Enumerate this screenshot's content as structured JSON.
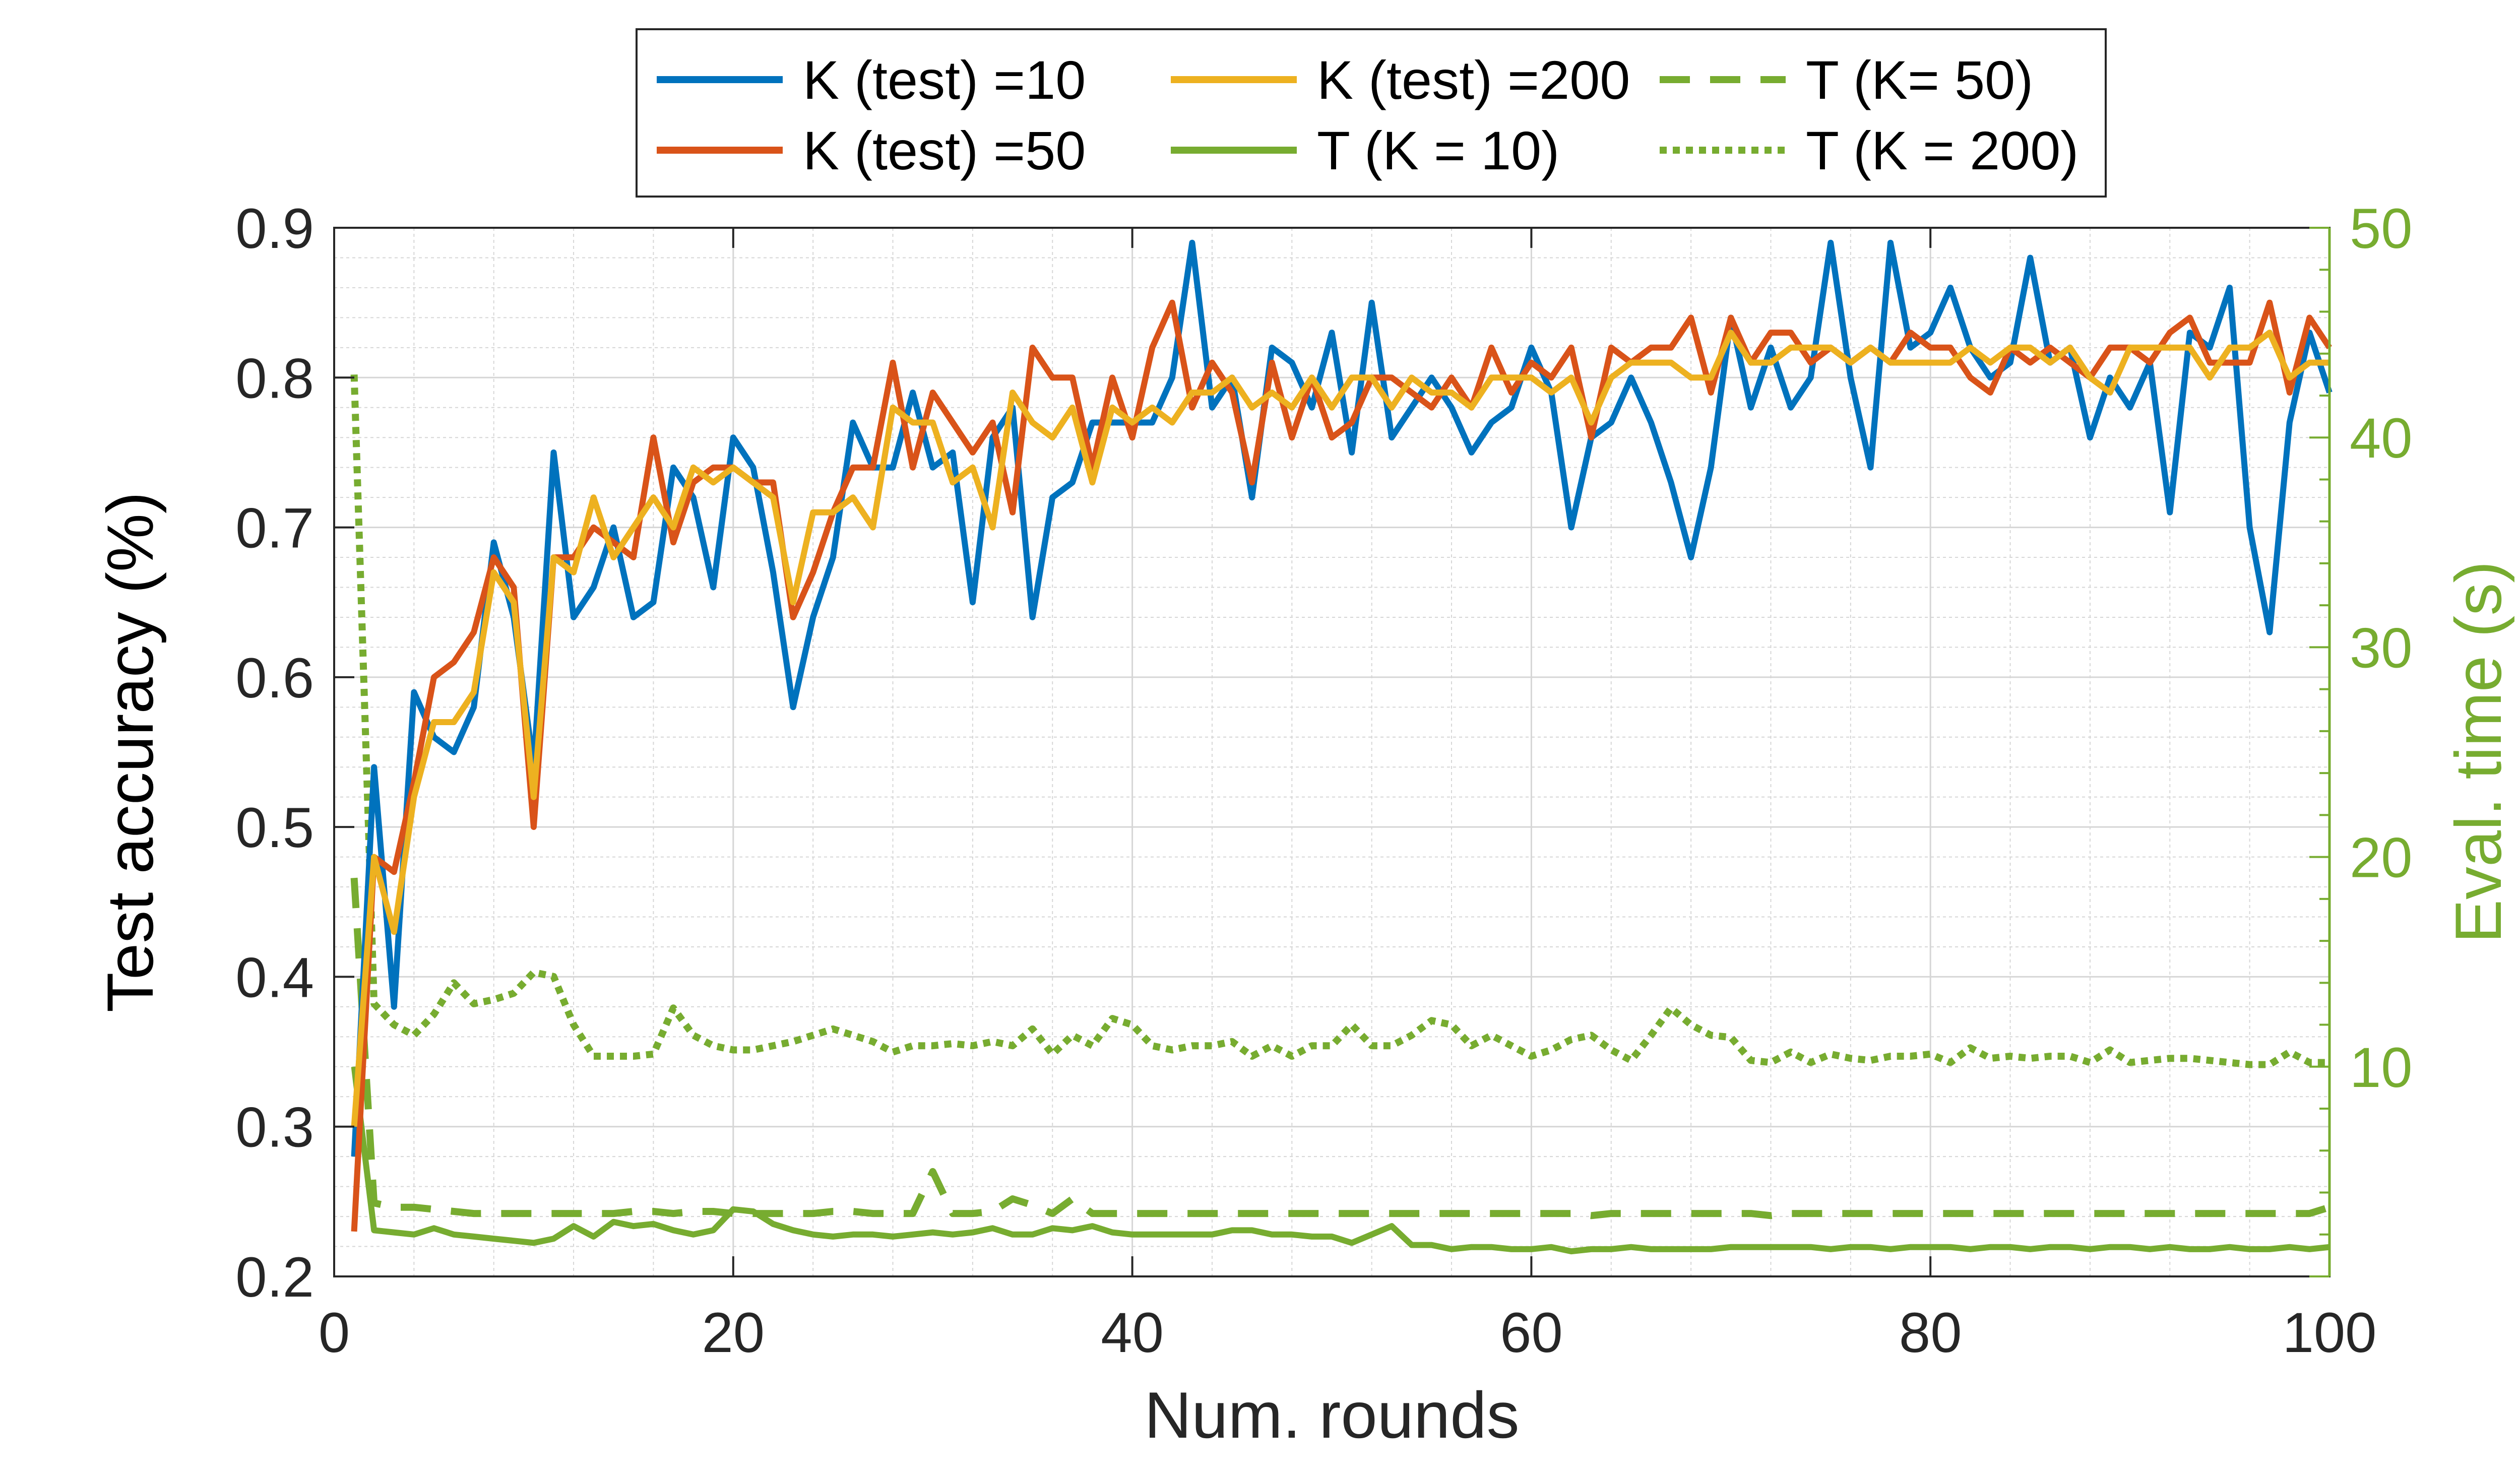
{
  "chart_data": {
    "type": "line",
    "xlabel": "Num. rounds",
    "ylabel_left": "Test accuracy (%)",
    "ylabel_right": "Eval. time (s)",
    "xlim": [
      0,
      100
    ],
    "ylim_left": [
      0.2,
      0.9
    ],
    "ylim_right": [
      0,
      50
    ],
    "xticks": [
      0,
      20,
      40,
      60,
      80,
      100
    ],
    "yticks_left": [
      0.2,
      0.3,
      0.4,
      0.5,
      0.6,
      0.7,
      0.8,
      0.9
    ],
    "yticks_right": [
      10,
      20,
      30,
      40,
      50
    ],
    "grid": true,
    "legend_position": "top",
    "colors": {
      "blue": "#0072BD",
      "orange": "#D95319",
      "yellow": "#EDB120",
      "green": "#77AC30",
      "axis": "#262626",
      "grid": "#d6d6d6"
    },
    "series": [
      {
        "name": "K (test) =10",
        "axis": "left",
        "color": "#0072BD",
        "dash": "solid",
        "x": [
          1,
          2,
          3,
          4,
          5,
          6,
          7,
          8,
          9,
          10,
          11,
          12,
          13,
          14,
          15,
          16,
          17,
          18,
          19,
          20,
          21,
          22,
          23,
          24,
          25,
          26,
          27,
          28,
          29,
          30,
          31,
          32,
          33,
          34,
          35,
          36,
          37,
          38,
          39,
          40,
          41,
          42,
          43,
          44,
          45,
          46,
          47,
          48,
          49,
          50,
          51,
          52,
          53,
          54,
          55,
          56,
          57,
          58,
          59,
          60,
          61,
          62,
          63,
          64,
          65,
          66,
          67,
          68,
          69,
          70,
          71,
          72,
          73,
          74,
          75,
          76,
          77,
          78,
          79,
          80,
          81,
          82,
          83,
          84,
          85,
          86,
          87,
          88,
          89,
          90,
          91,
          92,
          93,
          94,
          95,
          96,
          97,
          98,
          99,
          100
        ],
        "values": [
          0.28,
          0.54,
          0.38,
          0.59,
          0.56,
          0.55,
          0.58,
          0.69,
          0.64,
          0.54,
          0.75,
          0.64,
          0.66,
          0.7,
          0.64,
          0.65,
          0.74,
          0.72,
          0.66,
          0.76,
          0.74,
          0.67,
          0.58,
          0.64,
          0.68,
          0.77,
          0.74,
          0.74,
          0.79,
          0.74,
          0.75,
          0.65,
          0.76,
          0.78,
          0.64,
          0.72,
          0.73,
          0.77,
          0.77,
          0.77,
          0.77,
          0.8,
          0.89,
          0.78,
          0.8,
          0.72,
          0.82,
          0.81,
          0.78,
          0.83,
          0.75,
          0.85,
          0.76,
          0.78,
          0.8,
          0.78,
          0.75,
          0.77,
          0.78,
          0.82,
          0.79,
          0.7,
          0.76,
          0.77,
          0.8,
          0.77,
          0.73,
          0.68,
          0.74,
          0.84,
          0.78,
          0.82,
          0.78,
          0.8,
          0.89,
          0.8,
          0.74,
          0.89,
          0.82,
          0.83,
          0.86,
          0.82,
          0.8,
          0.81,
          0.88,
          0.81,
          0.82,
          0.76,
          0.8,
          0.78,
          0.81,
          0.71,
          0.83,
          0.82,
          0.86,
          0.7,
          0.63,
          0.77,
          0.83,
          0.79
        ]
      },
      {
        "name": "K (test) =50",
        "axis": "left",
        "color": "#D95319",
        "dash": "solid",
        "x": [
          1,
          2,
          3,
          4,
          5,
          6,
          7,
          8,
          9,
          10,
          11,
          12,
          13,
          14,
          15,
          16,
          17,
          18,
          19,
          20,
          21,
          22,
          23,
          24,
          25,
          26,
          27,
          28,
          29,
          30,
          31,
          32,
          33,
          34,
          35,
          36,
          37,
          38,
          39,
          40,
          41,
          42,
          43,
          44,
          45,
          46,
          47,
          48,
          49,
          50,
          51,
          52,
          53,
          54,
          55,
          56,
          57,
          58,
          59,
          60,
          61,
          62,
          63,
          64,
          65,
          66,
          67,
          68,
          69,
          70,
          71,
          72,
          73,
          74,
          75,
          76,
          77,
          78,
          79,
          80,
          81,
          82,
          83,
          84,
          85,
          86,
          87,
          88,
          89,
          90,
          91,
          92,
          93,
          94,
          95,
          96,
          97,
          98,
          99,
          100
        ],
        "values": [
          0.23,
          0.48,
          0.47,
          0.53,
          0.6,
          0.61,
          0.63,
          0.68,
          0.66,
          0.5,
          0.68,
          0.68,
          0.7,
          0.69,
          0.68,
          0.76,
          0.69,
          0.73,
          0.74,
          0.74,
          0.73,
          0.73,
          0.64,
          0.67,
          0.71,
          0.74,
          0.74,
          0.81,
          0.74,
          0.79,
          0.77,
          0.75,
          0.77,
          0.71,
          0.82,
          0.8,
          0.8,
          0.74,
          0.8,
          0.76,
          0.82,
          0.85,
          0.78,
          0.81,
          0.79,
          0.73,
          0.81,
          0.76,
          0.8,
          0.76,
          0.77,
          0.8,
          0.8,
          0.79,
          0.78,
          0.8,
          0.78,
          0.82,
          0.79,
          0.81,
          0.8,
          0.82,
          0.76,
          0.82,
          0.81,
          0.82,
          0.82,
          0.84,
          0.79,
          0.84,
          0.81,
          0.83,
          0.83,
          0.81,
          0.82,
          0.81,
          0.82,
          0.81,
          0.83,
          0.82,
          0.82,
          0.8,
          0.79,
          0.82,
          0.81,
          0.82,
          0.81,
          0.8,
          0.82,
          0.82,
          0.81,
          0.83,
          0.84,
          0.81,
          0.81,
          0.81,
          0.85,
          0.79,
          0.84,
          0.82
        ]
      },
      {
        "name": "K (test) =200",
        "axis": "left",
        "color": "#EDB120",
        "dash": "solid",
        "x": [
          1,
          2,
          3,
          4,
          5,
          6,
          7,
          8,
          9,
          10,
          11,
          12,
          13,
          14,
          15,
          16,
          17,
          18,
          19,
          20,
          21,
          22,
          23,
          24,
          25,
          26,
          27,
          28,
          29,
          30,
          31,
          32,
          33,
          34,
          35,
          36,
          37,
          38,
          39,
          40,
          41,
          42,
          43,
          44,
          45,
          46,
          47,
          48,
          49,
          50,
          51,
          52,
          53,
          54,
          55,
          56,
          57,
          58,
          59,
          60,
          61,
          62,
          63,
          64,
          65,
          66,
          67,
          68,
          69,
          70,
          71,
          72,
          73,
          74,
          75,
          76,
          77,
          78,
          79,
          80,
          81,
          82,
          83,
          84,
          85,
          86,
          87,
          88,
          89,
          90,
          91,
          92,
          93,
          94,
          95,
          96,
          97,
          98,
          99,
          100
        ],
        "values": [
          0.3,
          0.48,
          0.43,
          0.52,
          0.57,
          0.57,
          0.59,
          0.67,
          0.65,
          0.52,
          0.68,
          0.67,
          0.72,
          0.68,
          0.7,
          0.72,
          0.7,
          0.74,
          0.73,
          0.74,
          0.73,
          0.72,
          0.65,
          0.71,
          0.71,
          0.72,
          0.7,
          0.78,
          0.77,
          0.77,
          0.73,
          0.74,
          0.7,
          0.79,
          0.77,
          0.76,
          0.78,
          0.73,
          0.78,
          0.77,
          0.78,
          0.77,
          0.79,
          0.79,
          0.8,
          0.78,
          0.79,
          0.78,
          0.8,
          0.78,
          0.8,
          0.8,
          0.78,
          0.8,
          0.79,
          0.79,
          0.78,
          0.8,
          0.8,
          0.8,
          0.79,
          0.8,
          0.77,
          0.8,
          0.81,
          0.81,
          0.81,
          0.8,
          0.8,
          0.83,
          0.81,
          0.81,
          0.82,
          0.82,
          0.82,
          0.81,
          0.82,
          0.81,
          0.81,
          0.81,
          0.81,
          0.82,
          0.81,
          0.82,
          0.82,
          0.81,
          0.82,
          0.8,
          0.79,
          0.82,
          0.82,
          0.82,
          0.82,
          0.8,
          0.82,
          0.82,
          0.83,
          0.8,
          0.81,
          0.81
        ]
      },
      {
        "name": "T (K = 10)",
        "axis": "right",
        "color": "#77AC30",
        "dash": "solid",
        "x": [
          1,
          2,
          3,
          4,
          5,
          6,
          7,
          8,
          9,
          10,
          11,
          12,
          13,
          14,
          15,
          16,
          17,
          18,
          19,
          20,
          21,
          22,
          23,
          24,
          25,
          26,
          27,
          28,
          29,
          30,
          31,
          32,
          33,
          34,
          35,
          36,
          37,
          38,
          39,
          40,
          41,
          42,
          43,
          44,
          45,
          46,
          47,
          48,
          49,
          50,
          51,
          52,
          53,
          54,
          55,
          56,
          57,
          58,
          59,
          60,
          61,
          62,
          63,
          64,
          65,
          66,
          67,
          68,
          69,
          70,
          71,
          72,
          73,
          74,
          75,
          76,
          77,
          78,
          79,
          80,
          81,
          82,
          83,
          84,
          85,
          86,
          87,
          88,
          89,
          90,
          91,
          92,
          93,
          94,
          95,
          96,
          97,
          98,
          99,
          100
        ],
        "values": [
          10.0,
          2.2,
          2.1,
          2.0,
          2.3,
          2.0,
          1.9,
          1.8,
          1.7,
          1.6,
          1.8,
          2.4,
          1.9,
          2.6,
          2.4,
          2.5,
          2.2,
          2.0,
          2.2,
          3.2,
          3.1,
          2.5,
          2.2,
          2.0,
          1.9,
          2.0,
          2.0,
          1.9,
          2.0,
          2.1,
          2.0,
          2.1,
          2.3,
          2.0,
          2.0,
          2.3,
          2.2,
          2.4,
          2.1,
          2.0,
          2.0,
          2.0,
          2.0,
          2.0,
          2.2,
          2.2,
          2.0,
          2.0,
          1.9,
          1.9,
          1.6,
          2.0,
          2.4,
          1.5,
          1.5,
          1.3,
          1.4,
          1.4,
          1.3,
          1.3,
          1.4,
          1.2,
          1.3,
          1.3,
          1.4,
          1.3,
          1.3,
          1.3,
          1.3,
          1.4,
          1.4,
          1.4,
          1.4,
          1.4,
          1.3,
          1.4,
          1.4,
          1.3,
          1.4,
          1.4,
          1.4,
          1.3,
          1.4,
          1.4,
          1.3,
          1.4,
          1.4,
          1.3,
          1.4,
          1.4,
          1.3,
          1.4,
          1.3,
          1.3,
          1.4,
          1.3,
          1.3,
          1.4,
          1.3,
          1.4
        ]
      },
      {
        "name": "T (K= 50)",
        "axis": "right",
        "color": "#77AC30",
        "dash": "dashed",
        "x": [
          1,
          2,
          3,
          4,
          5,
          6,
          7,
          8,
          9,
          10,
          11,
          12,
          13,
          14,
          15,
          16,
          17,
          18,
          19,
          20,
          21,
          22,
          23,
          24,
          25,
          26,
          27,
          28,
          29,
          30,
          31,
          32,
          33,
          34,
          35,
          36,
          37,
          38,
          39,
          40,
          41,
          42,
          43,
          44,
          45,
          46,
          47,
          48,
          49,
          50,
          51,
          52,
          53,
          54,
          55,
          56,
          57,
          58,
          59,
          60,
          61,
          62,
          63,
          64,
          65,
          66,
          67,
          68,
          69,
          70,
          71,
          72,
          73,
          74,
          75,
          76,
          77,
          78,
          79,
          80,
          81,
          82,
          83,
          84,
          85,
          86,
          87,
          88,
          89,
          90,
          91,
          92,
          93,
          94,
          95,
          96,
          97,
          98,
          99,
          100
        ],
        "values": [
          19.0,
          3.5,
          3.3,
          3.3,
          3.2,
          3.1,
          3.0,
          3.0,
          3.0,
          3.0,
          3.0,
          3.0,
          3.0,
          3.0,
          3.1,
          3.1,
          3.0,
          3.1,
          3.1,
          3.0,
          3.0,
          3.0,
          3.0,
          3.0,
          3.1,
          3.1,
          3.0,
          3.0,
          3.0,
          5.0,
          3.0,
          3.0,
          3.1,
          3.7,
          3.4,
          3.0,
          3.7,
          3.0,
          3.0,
          3.0,
          3.0,
          3.0,
          3.0,
          3.0,
          3.0,
          3.0,
          3.0,
          3.0,
          3.0,
          3.0,
          3.0,
          3.0,
          3.0,
          3.0,
          3.0,
          3.0,
          3.0,
          3.0,
          3.0,
          3.0,
          3.0,
          3.0,
          2.9,
          3.0,
          3.0,
          3.0,
          3.0,
          3.0,
          3.0,
          3.0,
          3.0,
          2.9,
          3.0,
          3.0,
          3.0,
          3.0,
          3.0,
          3.0,
          3.0,
          3.0,
          3.0,
          3.0,
          3.0,
          3.0,
          3.0,
          3.0,
          3.0,
          3.0,
          3.0,
          3.0,
          3.0,
          3.0,
          3.0,
          3.0,
          3.0,
          3.0,
          3.0,
          3.0,
          3.0,
          3.3
        ]
      },
      {
        "name": "T (K = 200)",
        "axis": "right",
        "color": "#77AC30",
        "dash": "dotted",
        "x": [
          1,
          2,
          3,
          4,
          5,
          6,
          7,
          8,
          9,
          10,
          11,
          12,
          13,
          14,
          15,
          16,
          17,
          18,
          19,
          20,
          21,
          22,
          23,
          24,
          25,
          26,
          27,
          28,
          29,
          30,
          31,
          32,
          33,
          34,
          35,
          36,
          37,
          38,
          39,
          40,
          41,
          42,
          43,
          44,
          45,
          46,
          47,
          48,
          49,
          50,
          51,
          52,
          53,
          54,
          55,
          56,
          57,
          58,
          59,
          60,
          61,
          62,
          63,
          64,
          65,
          66,
          67,
          68,
          69,
          70,
          71,
          72,
          73,
          74,
          75,
          76,
          77,
          78,
          79,
          80,
          81,
          82,
          83,
          84,
          85,
          86,
          87,
          88,
          89,
          90,
          91,
          92,
          93,
          94,
          95,
          96,
          97,
          98,
          99,
          100
        ],
        "values": [
          43.0,
          13.0,
          12.0,
          11.5,
          12.5,
          14.0,
          13.0,
          13.2,
          13.5,
          14.5,
          14.3,
          12.0,
          10.5,
          10.5,
          10.5,
          10.6,
          12.8,
          11.5,
          11.0,
          10.8,
          10.8,
          11.0,
          11.2,
          11.5,
          11.8,
          11.5,
          11.2,
          10.7,
          11.0,
          11.0,
          11.1,
          11.0,
          11.2,
          11.0,
          11.8,
          10.6,
          11.5,
          11.0,
          12.3,
          12.0,
          11.0,
          10.8,
          11.0,
          11.0,
          11.2,
          10.5,
          11.0,
          10.5,
          11.0,
          11.0,
          12.0,
          11.0,
          11.0,
          11.5,
          12.2,
          12.0,
          11.0,
          11.5,
          11.0,
          10.5,
          10.8,
          11.3,
          11.5,
          10.8,
          10.3,
          11.5,
          12.8,
          12.0,
          11.5,
          11.4,
          10.3,
          10.2,
          10.7,
          10.2,
          10.6,
          10.4,
          10.3,
          10.5,
          10.5,
          10.6,
          10.2,
          10.9,
          10.4,
          10.5,
          10.4,
          10.5,
          10.5,
          10.2,
          10.8,
          10.2,
          10.3,
          10.4,
          10.4,
          10.3,
          10.2,
          10.1,
          10.1,
          10.7,
          10.2,
          10.2
        ]
      }
    ]
  }
}
